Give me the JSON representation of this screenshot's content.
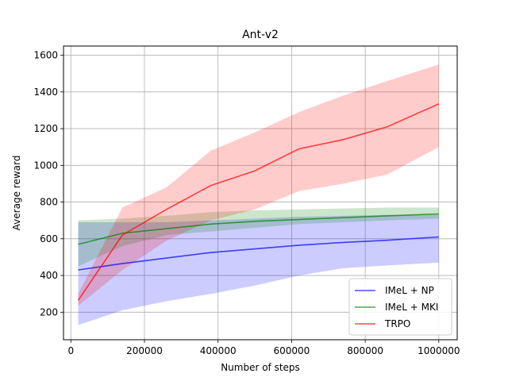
{
  "chart_data": {
    "type": "line",
    "title": "Ant-v2",
    "xlabel": "Number of steps",
    "ylabel": "Average reward",
    "xlim": [
      -20000,
      1050000
    ],
    "ylim": [
      50,
      1650
    ],
    "xticks": [
      0,
      200000,
      400000,
      600000,
      800000,
      1000000
    ],
    "xtick_labels": [
      "0",
      "200000",
      "400000",
      "600000",
      "800000",
      "1000000"
    ],
    "yticks": [
      200,
      400,
      600,
      800,
      1000,
      1200,
      1400,
      1600
    ],
    "ytick_labels": [
      "200",
      "400",
      "600",
      "800",
      "1000",
      "1200",
      "1400",
      "1600"
    ],
    "grid": true,
    "legend_position": "lower-right",
    "x": [
      20000,
      140000,
      260000,
      380000,
      500000,
      620000,
      740000,
      860000,
      1000000
    ],
    "series": [
      {
        "name": "IMeL + NP",
        "color": "#0000ff",
        "mean": [
          430,
          465,
          495,
          525,
          545,
          565,
          580,
          592,
          610
        ],
        "lower": [
          130,
          210,
          260,
          300,
          345,
          400,
          440,
          455,
          470
        ],
        "upper": [
          690,
          690,
          690,
          700,
          710,
          720,
          725,
          730,
          730
        ]
      },
      {
        "name": "IMeL + MKI",
        "color": "#008000",
        "mean": [
          570,
          630,
          655,
          680,
          695,
          705,
          715,
          725,
          735
        ],
        "lower": [
          450,
          560,
          620,
          640,
          660,
          680,
          690,
          700,
          710
        ],
        "upper": [
          700,
          710,
          725,
          745,
          755,
          760,
          765,
          770,
          770
        ]
      },
      {
        "name": "TRPO",
        "color": "#ff0000",
        "mean": [
          265,
          620,
          760,
          890,
          970,
          1090,
          1140,
          1210,
          1335
        ],
        "lower": [
          235,
          430,
          590,
          700,
          760,
          860,
          900,
          950,
          1100
        ],
        "upper": [
          300,
          770,
          880,
          1080,
          1180,
          1290,
          1380,
          1460,
          1550
        ]
      }
    ]
  }
}
